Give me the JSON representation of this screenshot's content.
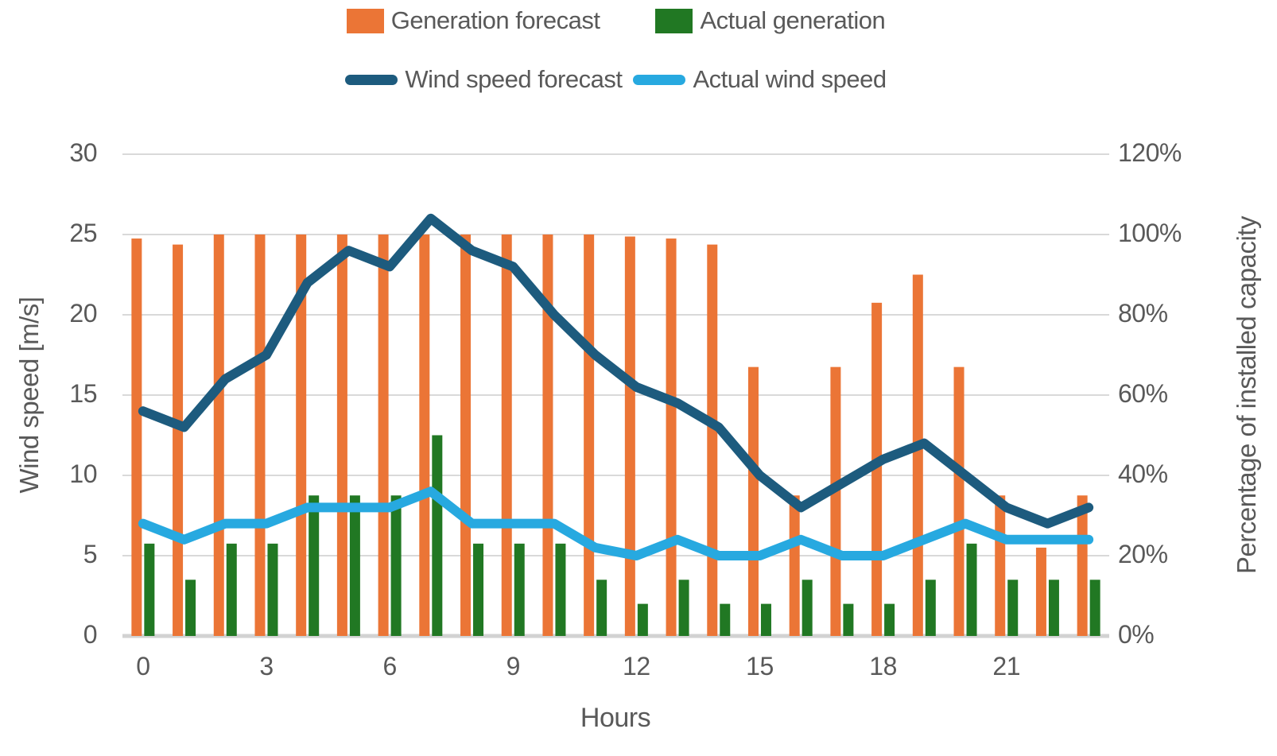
{
  "legend": {
    "items": [
      {
        "label": "Generation forecast",
        "type": "bar",
        "color": "#EB7536"
      },
      {
        "label": "Actual generation",
        "type": "bar",
        "color": "#217823"
      },
      {
        "label": "Wind speed forecast",
        "type": "line",
        "color": "#1D5B7E"
      },
      {
        "label": "Actual wind speed",
        "type": "line",
        "color": "#27A9E0"
      }
    ]
  },
  "axes": {
    "left": {
      "title": "Wind speed [m/s]",
      "ticks": [
        0,
        5,
        10,
        15,
        20,
        25,
        30
      ]
    },
    "right": {
      "title": "Percentage of installed capacity",
      "ticks": [
        "0%",
        "20%",
        "40%",
        "60%",
        "80%",
        "100%",
        "120%"
      ]
    },
    "x": {
      "title": "Hours",
      "tick_labels": [
        0,
        3,
        6,
        9,
        12,
        15,
        18,
        21
      ]
    }
  },
  "colors": {
    "generation_forecast": "#EB7536",
    "actual_generation": "#217823",
    "wind_speed_forecast": "#1D5B7E",
    "actual_wind_speed": "#27A9E0",
    "gridline": "#D9D9D9",
    "axis_line": "#D2D2D2",
    "text": "#595959"
  },
  "chart_data": {
    "type": "bar",
    "subtype": "combo-bar-line-dual-axis",
    "title": "",
    "xlabel": "Hours",
    "x": [
      0,
      1,
      2,
      3,
      4,
      5,
      6,
      7,
      8,
      9,
      10,
      11,
      12,
      13,
      14,
      15,
      16,
      17,
      18,
      19,
      20,
      21,
      22,
      23
    ],
    "x_tick_labels": [
      0,
      3,
      6,
      9,
      12,
      15,
      18,
      21
    ],
    "left_axis": {
      "label": "Wind speed [m/s]",
      "range": [
        0,
        30
      ],
      "tick_step": 5
    },
    "right_axis": {
      "label": "Percentage of installed capacity",
      "range_pct": [
        0,
        120
      ],
      "tick_step_pct": 20
    },
    "grid": true,
    "legend_position": "top",
    "series": [
      {
        "name": "Generation forecast",
        "type": "bar",
        "axis": "right",
        "unit": "%",
        "values": [
          99,
          97.5,
          100,
          100,
          100,
          100,
          100,
          100,
          100,
          100,
          100,
          100,
          99.5,
          99,
          97.5,
          67,
          35,
          67,
          83,
          90,
          67,
          35,
          22,
          35
        ]
      },
      {
        "name": "Actual generation",
        "type": "bar",
        "axis": "right",
        "unit": "%",
        "values": [
          23,
          14,
          23,
          23,
          35,
          35,
          35,
          50,
          23,
          23,
          23,
          14,
          8,
          14,
          8,
          8,
          14,
          8,
          8,
          14,
          23,
          14,
          14,
          14
        ]
      },
      {
        "name": "Wind speed forecast",
        "type": "line",
        "axis": "left",
        "unit": "m/s",
        "values": [
          14,
          13,
          16,
          17.5,
          22,
          24,
          23,
          26,
          24,
          23,
          20,
          17.5,
          15.5,
          14.5,
          13,
          10,
          8,
          9.5,
          11,
          12,
          10,
          8,
          7,
          8
        ]
      },
      {
        "name": "Actual wind speed",
        "type": "line",
        "axis": "left",
        "unit": "m/s",
        "values": [
          7,
          6,
          7,
          7,
          8,
          8,
          8,
          9,
          7,
          7,
          7,
          5.5,
          5,
          6,
          5,
          5,
          6,
          5,
          5,
          6,
          7,
          6,
          6,
          6
        ]
      }
    ]
  }
}
